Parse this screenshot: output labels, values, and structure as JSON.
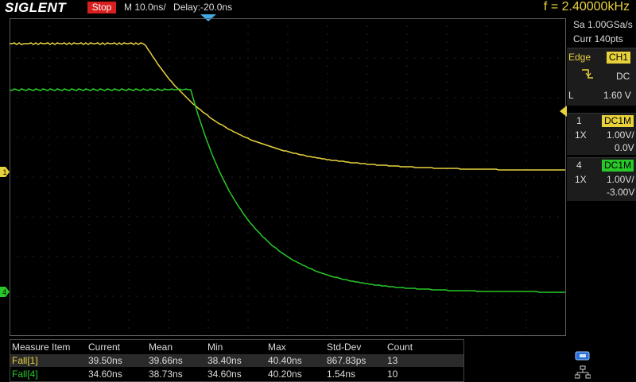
{
  "header": {
    "logo": "SIGLENT",
    "run_status": "Stop",
    "timebase": "M 10.0ns/",
    "delay": "Delay:-20.0ns",
    "frequency": "f = 2.40000kHz"
  },
  "acquisition": {
    "sample_rate": "Sa 1.00GSa/s",
    "curr_points": "Curr 140pts"
  },
  "trigger": {
    "type": "Edge",
    "source": "CH1",
    "coupling": "DC",
    "level_label": "L",
    "level_value": "1.60 V"
  },
  "channels": [
    {
      "number": "1",
      "coupling": "DC1M",
      "probe": "1X",
      "scale": "1.00V/",
      "offset": "0.0V",
      "color": "#e8d23c"
    },
    {
      "number": "4",
      "coupling": "DC1M",
      "probe": "1X",
      "scale": "1.00V/",
      "offset": "-3.00V",
      "color": "#28c828"
    }
  ],
  "measurements": {
    "headers": [
      "Measure Item",
      "Current",
      "Mean",
      "Min",
      "Max",
      "Std-Dev",
      "Count"
    ],
    "rows": [
      [
        "Fall[1]",
        "39.50ns",
        "39.66ns",
        "38.40ns",
        "40.40ns",
        "867.83ps",
        "13"
      ],
      [
        "Fall[4]",
        "34.60ns",
        "38.73ns",
        "34.60ns",
        "40.20ns",
        "1.54ns",
        "10"
      ]
    ]
  },
  "markers": {
    "ch1": "1",
    "ch4": "4"
  },
  "colors": {
    "ch1": "#e8d23c",
    "ch4": "#28c828",
    "stop": "#d81e1e",
    "trigger_arrow": "#3fa9e0"
  },
  "icons": [
    "trigger-marker-icon",
    "falling-edge-icon",
    "usb-icon",
    "network-icon"
  ]
}
